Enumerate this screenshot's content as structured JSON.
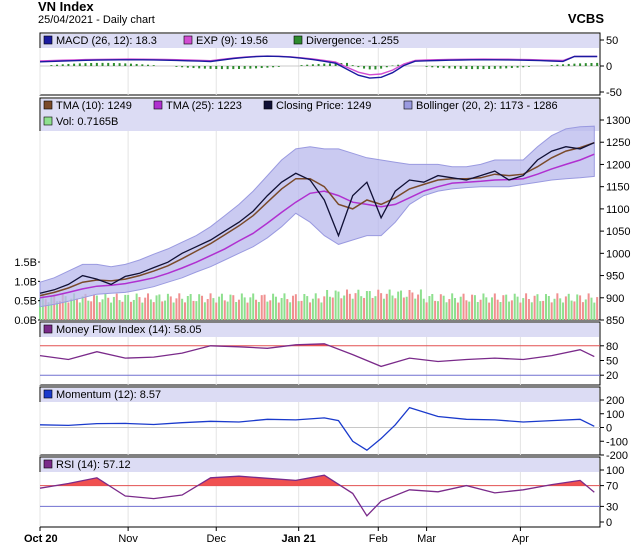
{
  "header": {
    "title": "VN Index",
    "subtitle": "25/04/2021 - Daily chart",
    "brand": "VCBS"
  },
  "colors": {
    "macd": "#1a1aa0",
    "exp": "#d24cd2",
    "divergence": "#2e8b2e",
    "tma10": "#7a4a2a",
    "tma25": "#b030d0",
    "close": "#101035",
    "bollinger": "#9a9ae0",
    "vol_up": "#8ee08e",
    "vol_down": "#f09090",
    "mfi": "#7a2a8a",
    "momentum": "#1a3acc",
    "rsi": "#7a2a8a",
    "fill_red": "#f05050",
    "panel_bg": "#dcdcf4"
  },
  "chart_data": [
    {
      "type": "line",
      "panel": "macd",
      "legend": [
        {
          "label": "MACD (26, 12): 18.3",
          "color": "#1a1aa0"
        },
        {
          "label": "EXP (9): 19.56",
          "color": "#d24cd2"
        },
        {
          "label": "Divergence: -1.255",
          "color": "#2e8b2e"
        }
      ],
      "yticks": [
        "50",
        "0",
        "-50"
      ],
      "ylim": [
        -50,
        50
      ]
    },
    {
      "type": "line",
      "panel": "price",
      "legend": [
        {
          "label": "TMA (10): 1249",
          "color": "#7a4a2a"
        },
        {
          "label": "TMA (25): 1223",
          "color": "#b030d0"
        },
        {
          "label": "Closing Price: 1249",
          "color": "#101035"
        },
        {
          "label": "Bollinger (20, 2): 1173 - 1286",
          "color": "#9a9ae0"
        },
        {
          "label": "Vol: 0.7165B",
          "color": "#8ee08e"
        }
      ],
      "yticks": [
        "1300",
        "1250",
        "1200",
        "1150",
        "1100",
        "1050",
        "1000",
        "950",
        "900",
        "850"
      ],
      "ylim": [
        850,
        1300
      ],
      "vol_ticks": [
        "1.5B",
        "1.0B",
        "0.5B",
        "0.0B"
      ],
      "vol_ylim": [
        0,
        1.5
      ],
      "x": [
        0,
        5,
        10,
        15,
        20,
        25,
        30,
        35,
        40,
        45,
        50,
        55,
        60,
        65,
        70,
        75,
        80,
        85,
        90,
        95,
        100,
        105,
        110,
        115,
        120,
        125,
        130,
        135,
        140,
        145,
        150,
        155,
        160,
        165,
        170,
        175,
        180,
        185,
        190,
        195
      ],
      "series": [
        {
          "name": "Closing Price",
          "values": [
            910,
            918,
            930,
            950,
            942,
            930,
            948,
            955,
            968,
            980,
            1000,
            1015,
            1030,
            1050,
            1070,
            1095,
            1130,
            1160,
            1180,
            1165,
            1120,
            1040,
            1130,
            1160,
            1080,
            1140,
            1165,
            1160,
            1175,
            1170,
            1165,
            1175,
            1185,
            1165,
            1175,
            1210,
            1230,
            1240,
            1235,
            1249
          ]
        },
        {
          "name": "TMA (10)",
          "values": [
            905,
            912,
            922,
            935,
            940,
            938,
            942,
            950,
            960,
            972,
            988,
            1005,
            1022,
            1042,
            1062,
            1085,
            1115,
            1145,
            1168,
            1168,
            1150,
            1110,
            1100,
            1120,
            1110,
            1125,
            1145,
            1155,
            1165,
            1168,
            1168,
            1170,
            1178,
            1175,
            1178,
            1195,
            1215,
            1230,
            1238,
            1249
          ]
        },
        {
          "name": "TMA (25)",
          "values": [
            900,
            905,
            912,
            920,
            926,
            928,
            932,
            938,
            945,
            955,
            967,
            980,
            995,
            1010,
            1028,
            1045,
            1068,
            1092,
            1115,
            1135,
            1140,
            1130,
            1115,
            1110,
            1105,
            1110,
            1125,
            1140,
            1150,
            1158,
            1160,
            1162,
            1165,
            1166,
            1168,
            1178,
            1190,
            1200,
            1210,
            1223
          ]
        },
        {
          "name": "Bollinger upper",
          "values": [
            935,
            945,
            960,
            975,
            975,
            970,
            975,
            985,
            998,
            1010,
            1025,
            1040,
            1060,
            1085,
            1110,
            1140,
            1175,
            1210,
            1235,
            1240,
            1235,
            1235,
            1225,
            1215,
            1210,
            1205,
            1200,
            1200,
            1200,
            1195,
            1195,
            1200,
            1210,
            1210,
            1210,
            1240,
            1265,
            1280,
            1285,
            1286
          ]
        },
        {
          "name": "Bollinger lower",
          "values": [
            880,
            885,
            892,
            900,
            908,
            910,
            912,
            918,
            925,
            935,
            945,
            958,
            970,
            985,
            1000,
            1015,
            1035,
            1060,
            1090,
            1070,
            1040,
            1020,
            1030,
            1040,
            1040,
            1070,
            1110,
            1130,
            1140,
            1145,
            1148,
            1150,
            1150,
            1150,
            1155,
            1160,
            1165,
            1168,
            1170,
            1173
          ]
        }
      ]
    },
    {
      "type": "area",
      "panel": "mfi",
      "legend": [
        {
          "label": "Money Flow Index (14): 58.05",
          "color": "#7a2a8a"
        }
      ],
      "yticks": [
        "80",
        "50",
        "20"
      ],
      "ylim": [
        0,
        100
      ],
      "thresholds": [
        80,
        20
      ],
      "x": [
        0,
        10,
        20,
        30,
        40,
        50,
        60,
        70,
        80,
        90,
        100,
        110,
        120,
        130,
        140,
        150,
        160,
        170,
        180,
        190,
        195
      ],
      "values": [
        60,
        52,
        68,
        55,
        57,
        65,
        80,
        78,
        75,
        82,
        84,
        62,
        38,
        55,
        48,
        52,
        55,
        52,
        60,
        72,
        58
      ]
    },
    {
      "type": "line",
      "panel": "momentum",
      "legend": [
        {
          "label": "Momentum (12): 8.57",
          "color": "#1a3acc"
        }
      ],
      "yticks": [
        "200",
        "100",
        "0",
        "-100",
        "-200"
      ],
      "ylim": [
        -200,
        200
      ],
      "x": [
        0,
        10,
        20,
        30,
        40,
        50,
        60,
        70,
        80,
        90,
        100,
        105,
        110,
        115,
        120,
        125,
        130,
        140,
        150,
        160,
        170,
        180,
        190,
        195
      ],
      "values": [
        20,
        15,
        28,
        30,
        22,
        35,
        45,
        40,
        60,
        55,
        70,
        50,
        -100,
        -165,
        -80,
        20,
        145,
        80,
        60,
        55,
        40,
        50,
        60,
        8.57
      ]
    },
    {
      "type": "area",
      "panel": "rsi",
      "legend": [
        {
          "label": "RSI (14): 57.12",
          "color": "#7a2a8a"
        }
      ],
      "yticks": [
        "100",
        "70",
        "30",
        "0"
      ],
      "ylim": [
        0,
        100
      ],
      "thresholds": [
        70,
        30
      ],
      "x": [
        0,
        10,
        20,
        30,
        40,
        50,
        60,
        70,
        80,
        90,
        100,
        110,
        115,
        120,
        130,
        140,
        150,
        160,
        170,
        180,
        190,
        195
      ],
      "values": [
        65,
        74,
        85,
        50,
        45,
        52,
        85,
        88,
        84,
        80,
        90,
        55,
        12,
        40,
        62,
        58,
        70,
        56,
        62,
        72,
        80,
        57.12
      ]
    }
  ],
  "x_axis": {
    "labels": [
      "Oct 20",
      "Nov",
      "Dec",
      "Jan 21",
      "Feb",
      "Mar",
      "Apr"
    ],
    "positions": [
      0,
      31,
      62,
      91,
      119,
      136,
      169
    ],
    "range": [
      0,
      197
    ]
  }
}
